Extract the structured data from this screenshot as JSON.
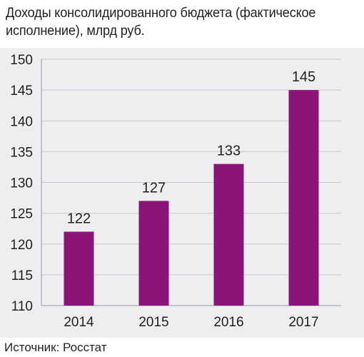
{
  "title": "Доходы консолидированного бюджета (фактическое исполнение), млрд руб.",
  "source": "Источник: Росстат",
  "colors": {
    "bar": "#8b1478",
    "grid": "#c8c8cc",
    "background": "#eeeef0"
  },
  "chart_data": {
    "type": "bar",
    "title": "Доходы консолидированного бюджета (фактическое исполнение), млрд руб.",
    "categories": [
      "2014",
      "2015",
      "2016",
      "2017"
    ],
    "values": [
      122,
      127,
      133,
      145
    ],
    "data_labels": [
      "122",
      "127",
      "133",
      "145"
    ],
    "ylim": [
      110,
      150
    ],
    "yticks": [
      110,
      115,
      120,
      125,
      130,
      135,
      140,
      145,
      150
    ],
    "grid": true,
    "legend": "none"
  }
}
